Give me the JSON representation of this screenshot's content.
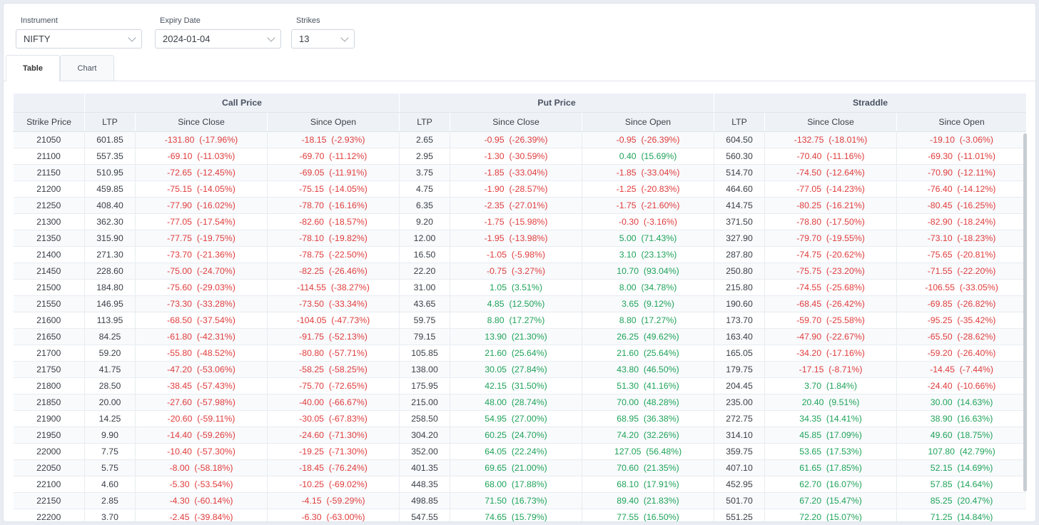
{
  "controls": {
    "instrument": {
      "label": "Instrument",
      "value": "NIFTY"
    },
    "expiry": {
      "label": "Expiry Date",
      "value": "2024-01-04"
    },
    "strikes": {
      "label": "Strikes",
      "value": "13"
    }
  },
  "tabs": [
    {
      "label": "Table"
    },
    {
      "label": "Chart"
    }
  ],
  "table": {
    "groups": {
      "call": "Call Price",
      "put": "Put Price",
      "straddle": "Straddle"
    },
    "columns": [
      "Strike Price",
      "LTP",
      "Since Close",
      "Since Open",
      "LTP",
      "Since Close",
      "Since Open",
      "LTP",
      "Since Close",
      "Since Open"
    ],
    "rows": [
      [
        "21050",
        "601.85",
        "-131.80  (-17.96%)",
        "-18.15  (-2.93%)",
        "2.65",
        "-0.95  (-26.39%)",
        "-0.95  (-26.39%)",
        "604.50",
        "-132.75  (-18.01%)",
        "-19.10  (-3.06%)"
      ],
      [
        "21100",
        "557.35",
        "-69.10  (-11.03%)",
        "-69.70  (-11.12%)",
        "2.95",
        "-1.30  (-30.59%)",
        "0.40  (15.69%)",
        "560.30",
        "-70.40  (-11.16%)",
        "-69.30  (-11.01%)"
      ],
      [
        "21150",
        "510.95",
        "-72.65  (-12.45%)",
        "-69.05  (-11.91%)",
        "3.75",
        "-1.85  (-33.04%)",
        "-1.85  (-33.04%)",
        "514.70",
        "-74.50  (-12.64%)",
        "-70.90  (-12.11%)"
      ],
      [
        "21200",
        "459.85",
        "-75.15  (-14.05%)",
        "-75.15  (-14.05%)",
        "4.75",
        "-1.90  (-28.57%)",
        "-1.25  (-20.83%)",
        "464.60",
        "-77.05  (-14.23%)",
        "-76.40  (-14.12%)"
      ],
      [
        "21250",
        "408.40",
        "-77.90  (-16.02%)",
        "-78.70  (-16.16%)",
        "6.35",
        "-2.35  (-27.01%)",
        "-1.75  (-21.60%)",
        "414.75",
        "-80.25  (-16.21%)",
        "-80.45  (-16.25%)"
      ],
      [
        "21300",
        "362.30",
        "-77.05  (-17.54%)",
        "-82.60  (-18.57%)",
        "9.20",
        "-1.75  (-15.98%)",
        "-0.30  (-3.16%)",
        "371.50",
        "-78.80  (-17.50%)",
        "-82.90  (-18.24%)"
      ],
      [
        "21350",
        "315.90",
        "-77.75  (-19.75%)",
        "-78.10  (-19.82%)",
        "12.00",
        "-1.95  (-13.98%)",
        "5.00  (71.43%)",
        "327.90",
        "-79.70  (-19.55%)",
        "-73.10  (-18.23%)"
      ],
      [
        "21400",
        "271.30",
        "-73.70  (-21.36%)",
        "-78.75  (-22.50%)",
        "16.50",
        "-1.05  (-5.98%)",
        "3.10  (23.13%)",
        "287.80",
        "-74.75  (-20.62%)",
        "-75.65  (-20.81%)"
      ],
      [
        "21450",
        "228.60",
        "-75.00  (-24.70%)",
        "-82.25  (-26.46%)",
        "22.20",
        "-0.75  (-3.27%)",
        "10.70  (93.04%)",
        "250.80",
        "-75.75  (-23.20%)",
        "-71.55  (-22.20%)"
      ],
      [
        "21500",
        "184.80",
        "-75.60  (-29.03%)",
        "-114.55  (-38.27%)",
        "31.00",
        "1.05  (3.51%)",
        "8.00  (34.78%)",
        "215.80",
        "-74.55  (-25.68%)",
        "-106.55  (-33.05%)"
      ],
      [
        "21550",
        "146.95",
        "-73.30  (-33.28%)",
        "-73.50  (-33.34%)",
        "43.65",
        "4.85  (12.50%)",
        "3.65  (9.12%)",
        "190.60",
        "-68.45  (-26.42%)",
        "-69.85  (-26.82%)"
      ],
      [
        "21600",
        "113.95",
        "-68.50  (-37.54%)",
        "-104.05  (-47.73%)",
        "59.75",
        "8.80  (17.27%)",
        "8.80  (17.27%)",
        "173.70",
        "-59.70  (-25.58%)",
        "-95.25  (-35.42%)"
      ],
      [
        "21650",
        "84.25",
        "-61.80  (-42.31%)",
        "-91.75  (-52.13%)",
        "79.15",
        "13.90  (21.30%)",
        "26.25  (49.62%)",
        "163.40",
        "-47.90  (-22.67%)",
        "-65.50  (-28.62%)"
      ],
      [
        "21700",
        "59.20",
        "-55.80  (-48.52%)",
        "-80.80  (-57.71%)",
        "105.85",
        "21.60  (25.64%)",
        "21.60  (25.64%)",
        "165.05",
        "-34.20  (-17.16%)",
        "-59.20  (-26.40%)"
      ],
      [
        "21750",
        "41.75",
        "-47.20  (-53.06%)",
        "-58.25  (-58.25%)",
        "138.00",
        "30.05  (27.84%)",
        "43.80  (46.50%)",
        "179.75",
        "-17.15  (-8.71%)",
        "-14.45  (-7.44%)"
      ],
      [
        "21800",
        "28.50",
        "-38.45  (-57.43%)",
        "-75.70  (-72.65%)",
        "175.95",
        "42.15  (31.50%)",
        "51.30  (41.16%)",
        "204.45",
        "3.70  (1.84%)",
        "-24.40  (-10.66%)"
      ],
      [
        "21850",
        "20.00",
        "-27.60  (-57.98%)",
        "-40.00  (-66.67%)",
        "215.00",
        "48.00  (28.74%)",
        "70.00  (48.28%)",
        "235.00",
        "20.40  (9.51%)",
        "30.00  (14.63%)"
      ],
      [
        "21900",
        "14.25",
        "-20.60  (-59.11%)",
        "-30.05  (-67.83%)",
        "258.50",
        "54.95  (27.00%)",
        "68.95  (36.38%)",
        "272.75",
        "34.35  (14.41%)",
        "38.90  (16.63%)"
      ],
      [
        "21950",
        "9.90",
        "-14.40  (-59.26%)",
        "-24.60  (-71.30%)",
        "304.20",
        "60.25  (24.70%)",
        "74.20  (32.26%)",
        "314.10",
        "45.85  (17.09%)",
        "49.60  (18.75%)"
      ],
      [
        "22000",
        "7.75",
        "-10.40  (-57.30%)",
        "-19.25  (-71.30%)",
        "352.00",
        "64.05  (22.24%)",
        "127.05  (56.48%)",
        "359.75",
        "53.65  (17.53%)",
        "107.80  (42.79%)"
      ],
      [
        "22050",
        "5.75",
        "-8.00  (-58.18%)",
        "-18.45  (-76.24%)",
        "401.35",
        "69.65  (21.00%)",
        "70.60  (21.35%)",
        "407.10",
        "61.65  (17.85%)",
        "52.15  (14.69%)"
      ],
      [
        "22100",
        "4.60",
        "-5.30  (-53.54%)",
        "-10.25  (-69.02%)",
        "448.35",
        "68.00  (17.88%)",
        "68.10  (17.91%)",
        "452.95",
        "62.70  (16.07%)",
        "57.85  (14.64%)"
      ],
      [
        "22150",
        "2.85",
        "-4.30  (-60.14%)",
        "-4.15  (-59.29%)",
        "498.85",
        "71.50  (16.73%)",
        "89.40  (21.83%)",
        "501.70",
        "67.20  (15.47%)",
        "85.25  (20.47%)"
      ],
      [
        "22200",
        "3.70",
        "-2.45  (-39.84%)",
        "-6.30  (-63.00%)",
        "547.55",
        "74.65  (15.79%)",
        "77.55  (16.50%)",
        "551.25",
        "72.20  (15.07%)",
        "71.25  (14.84%)"
      ]
    ]
  },
  "colors": {
    "negative": "#e03c3c",
    "positive": "#1fa35a",
    "header_bg": "#eef2f7"
  }
}
